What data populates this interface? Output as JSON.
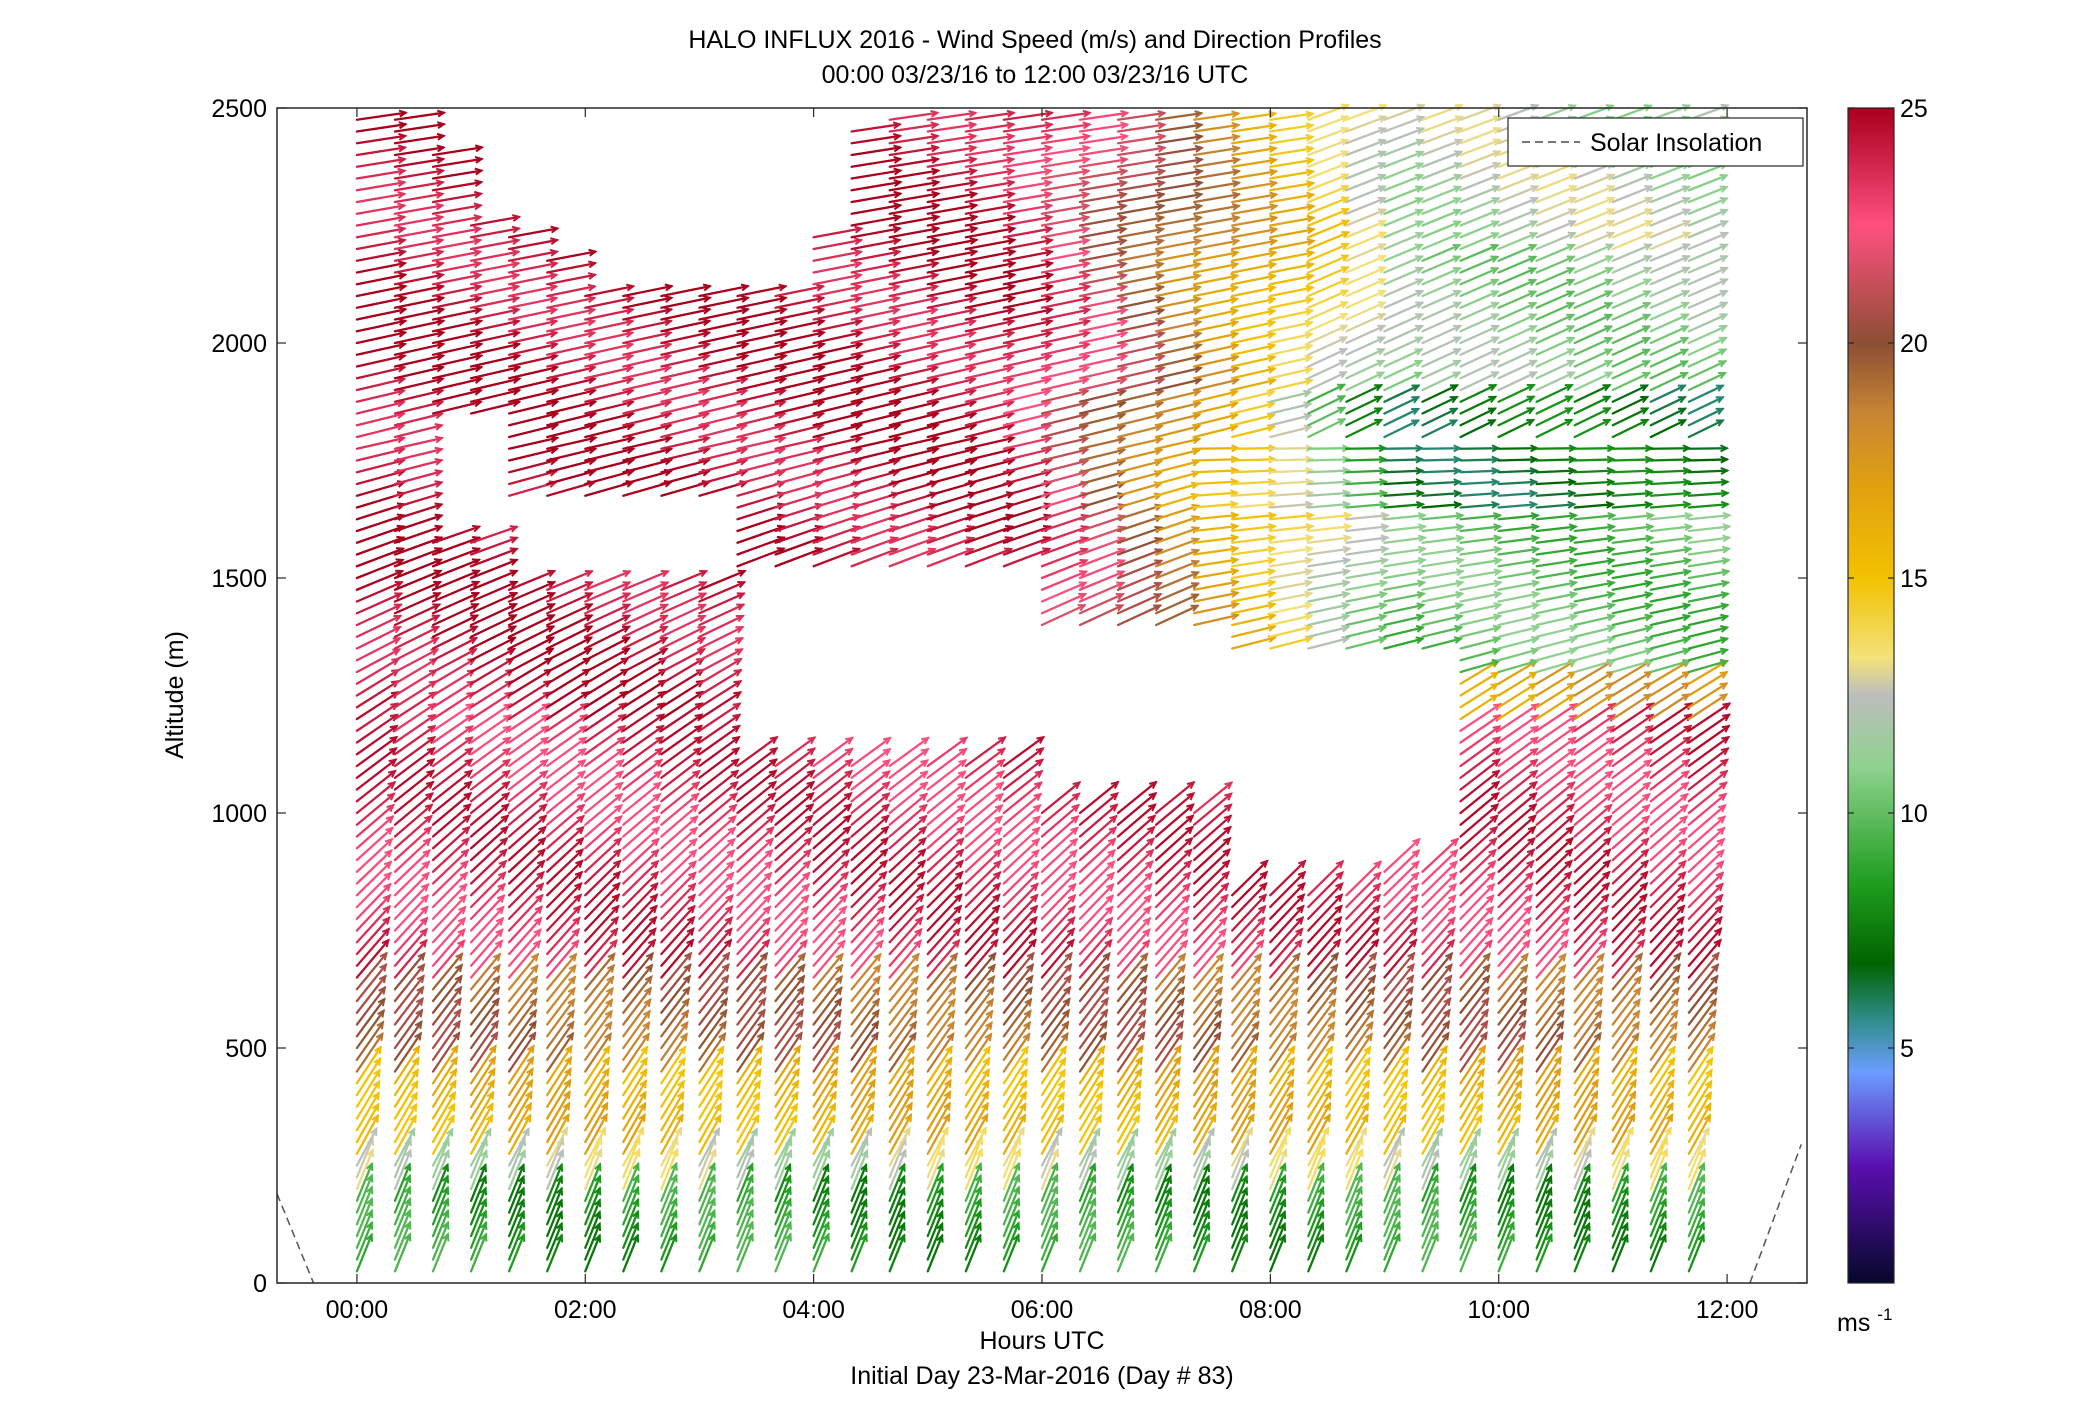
{
  "chart_data": {
    "type": "quiver",
    "title": "HALO INFLUX 2016 - Wind Speed (m/s) and Direction Profiles",
    "subtitle": "00:00 03/23/16 to 12:00 03/23/16  UTC",
    "xlabel": "Hours UTC",
    "xlabel2": "Initial Day 23-Mar-2016 (Day # 83)",
    "ylabel": "Altitude (m)",
    "xlim": [
      -0.7,
      12.7
    ],
    "ylim": [
      0,
      2500
    ],
    "x_ticks": [
      0,
      2,
      4,
      6,
      8,
      10,
      12
    ],
    "x_tick_labels": [
      "00:00",
      "02:00",
      "04:00",
      "06:00",
      "08:00",
      "10:00",
      "12:00"
    ],
    "y_ticks": [
      0,
      500,
      1000,
      1500,
      2000,
      2500
    ],
    "y_tick_labels": [
      "0",
      "500",
      "1000",
      "1500",
      "2000",
      "2500"
    ],
    "legend": {
      "label": "Solar Insolation",
      "placement": "top-right",
      "style": "dashed gray"
    },
    "colorbar": {
      "min": 0,
      "max": 25,
      "ticks": [
        5,
        10,
        15,
        20,
        25
      ],
      "tick_labels": [
        "5",
        "10",
        "15",
        "20",
        "25"
      ],
      "unit_label": "ms",
      "unit_exponent": "-1",
      "colormap_stops": [
        {
          "v": 0,
          "c": "#06082a"
        },
        {
          "v": 2.5,
          "c": "#5a0fb0"
        },
        {
          "v": 4.5,
          "c": "#6b9dff"
        },
        {
          "v": 5.6,
          "c": "#2f8d8a"
        },
        {
          "v": 6.8,
          "c": "#006400"
        },
        {
          "v": 8.5,
          "c": "#1e9e1e"
        },
        {
          "v": 11,
          "c": "#8fd28f"
        },
        {
          "v": 12.5,
          "c": "#bdbdbd"
        },
        {
          "v": 13.3,
          "c": "#f3e27a"
        },
        {
          "v": 15,
          "c": "#f2c100"
        },
        {
          "v": 17,
          "c": "#e0a010"
        },
        {
          "v": 18.5,
          "c": "#c78535"
        },
        {
          "v": 20,
          "c": "#8c4f33"
        },
        {
          "v": 22.5,
          "c": "#ff4f80"
        },
        {
          "v": 25,
          "c": "#a8001c"
        }
      ]
    },
    "solar_insolation": [
      {
        "x": [
          -0.7,
          -0.38
        ],
        "y": [
          190,
          0
        ]
      },
      {
        "x": [
          12.2,
          12.65
        ],
        "y": [
          0,
          295
        ]
      }
    ],
    "arrow_grid": {
      "x_start": 0.0,
      "x_step": 0.3333,
      "x_count": 36,
      "z_start": 25,
      "z_step": 25,
      "z_count": 99
    },
    "valid_region": [
      {
        "x": 0.0,
        "top": 2490
      },
      {
        "x": 0.33,
        "top": 2490
      },
      {
        "x": 0.67,
        "top": 2410
      },
      {
        "x": 1.0,
        "top": 2250
      },
      {
        "x": 1.33,
        "top": 2250
      },
      {
        "x": 1.67,
        "top": 2190
      },
      {
        "x": 2.0,
        "top": 2120
      },
      {
        "x": 2.33,
        "top": 2120
      },
      {
        "x": 2.67,
        "top": 2120
      },
      {
        "x": 3.0,
        "top": 2120
      },
      {
        "x": 3.33,
        "top": 2120
      },
      {
        "x": 3.67,
        "top": 2120
      },
      {
        "x": 4.0,
        "top": 2250
      },
      {
        "x": 4.33,
        "top": 2460
      },
      {
        "x": 4.67,
        "top": 2490
      },
      {
        "x": 12.0,
        "top": 2490
      }
    ],
    "data_gaps": [
      {
        "x": [
          0.35,
          1.25
        ],
        "y": [
          1580,
          1830
        ]
      },
      {
        "x": [
          1.2,
          3.0
        ],
        "y": [
          1500,
          1650
        ]
      },
      {
        "x": [
          3.05,
          5.8
        ],
        "y": [
          1120,
          1510
        ]
      },
      {
        "x": [
          5.8,
          7.5
        ],
        "y": [
          1010,
          1380
        ]
      },
      {
        "x": [
          6.2,
          9.4
        ],
        "y": [
          1140,
          1330
        ]
      },
      {
        "x": [
          7.4,
          9.4
        ],
        "y": [
          1010,
          1140
        ]
      },
      {
        "x": [
          7.5,
          8.8
        ],
        "y": [
          850,
          1010
        ]
      },
      {
        "x": [
          8.7,
          9.4
        ],
        "y": [
          900,
          1010
        ]
      }
    ],
    "speed_profile_note": "wind speed varies with altitude and time; color encodes speed per colorbar",
    "speed_by_layer": [
      {
        "z": [
          0,
          200
        ],
        "speed": 8.5
      },
      {
        "z": [
          200,
          260
        ],
        "speed": 12.5
      },
      {
        "z": [
          260,
          450
        ],
        "speed": 16
      },
      {
        "z": [
          450,
          650
        ],
        "speed": 19.5
      },
      {
        "z": [
          650,
          1200
        ],
        "speed": 23.5
      },
      {
        "z": [
          1200,
          2500
        ],
        "speed": 24.5
      }
    ],
    "late_period_speed_by_layer": [
      {
        "z": [
          1200,
          1300
        ],
        "speed": 17
      },
      {
        "z": [
          1300,
          1650
        ],
        "speed": 10
      },
      {
        "z": [
          1650,
          1900
        ],
        "speed": 7
      },
      {
        "z": [
          1900,
          2200
        ],
        "speed": 11
      },
      {
        "z": [
          2200,
          2500
        ],
        "speed": 12
      }
    ]
  }
}
